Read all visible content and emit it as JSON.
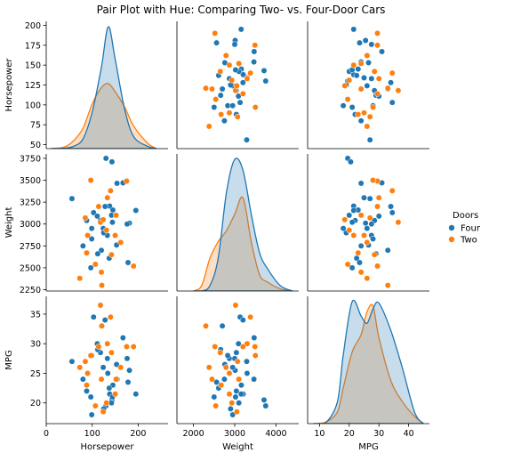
{
  "chart_data": {
    "type": "scatter",
    "title": "Pair Plot with Hue: Comparing Two- vs. Four-Door Cars",
    "variables": [
      "Horsepower",
      "Weight",
      "MPG"
    ],
    "diagonal": "kde",
    "offdiagonal": "scatter",
    "grid": false,
    "legend": {
      "title": "Doors",
      "position": "right",
      "entries": [
        "Four",
        "Two"
      ]
    },
    "colors": {
      "Four": "#1f77b4",
      "Two": "#ff7f0e"
    },
    "axes": {
      "Horsepower": {
        "lim": [
          0,
          265
        ],
        "ticks": [
          50,
          75,
          100,
          125,
          150,
          175,
          200
        ],
        "bottom_ticks": [
          0,
          100,
          200
        ],
        "lim_row": [
          45,
          205
        ]
      },
      "Weight": {
        "lim": [
          1600,
          4550
        ],
        "ticks": [
          2250,
          2500,
          2750,
          3000,
          3250,
          3500,
          3750
        ],
        "bottom_ticks": [
          2000,
          3000,
          4000
        ],
        "lim_row": [
          2235,
          3800
        ]
      },
      "MPG": {
        "lim": [
          6,
          47
        ],
        "ticks": [
          20,
          25,
          30,
          35
        ],
        "bottom_ticks": [
          10,
          20,
          30,
          40
        ],
        "lim_row": [
          16.5,
          38
        ]
      }
    },
    "series": [
      {
        "name": "Four",
        "points": [
          {
            "Horsepower": 130,
            "Weight": 3750,
            "MPG": 19.5
          },
          {
            "Horsepower": 143,
            "Weight": 3710,
            "MPG": 20.5
          },
          {
            "Horsepower": 154,
            "Weight": 3465,
            "MPG": 24.0
          },
          {
            "Horsepower": 167,
            "Weight": 3470,
            "MPG": 31.0
          },
          {
            "Horsepower": 138,
            "Weight": 3205,
            "MPG": 21.5
          },
          {
            "Horsepower": 145,
            "Weight": 3160,
            "MPG": 23.0
          },
          {
            "Horsepower": 56,
            "Weight": 3290,
            "MPG": 27.0
          },
          {
            "Horsepower": 103,
            "Weight": 3130,
            "MPG": 34.5
          },
          {
            "Horsepower": 195,
            "Weight": 3155,
            "MPG": 21.5
          },
          {
            "Horsepower": 118,
            "Weight": 3040,
            "MPG": 28.5
          },
          {
            "Horsepower": 181,
            "Weight": 3010,
            "MPG": 25.5
          },
          {
            "Horsepower": 124,
            "Weight": 2950,
            "MPG": 26.0
          },
          {
            "Horsepower": 133,
            "Weight": 2870,
            "MPG": 27.5
          },
          {
            "Horsepower": 99,
            "Weight": 2830,
            "MPG": 28.0
          },
          {
            "Horsepower": 153,
            "Weight": 2760,
            "MPG": 26.5
          },
          {
            "Horsepower": 120,
            "Weight": 2700,
            "MPG": 33.0
          },
          {
            "Horsepower": 112,
            "Weight": 2660,
            "MPG": 29.0
          },
          {
            "Horsepower": 137,
            "Weight": 2610,
            "MPG": 22.5
          },
          {
            "Horsepower": 178,
            "Weight": 2560,
            "MPG": 23.5
          },
          {
            "Horsepower": 97,
            "Weight": 2500,
            "MPG": 21.0
          },
          {
            "Horsepower": 88,
            "Weight": 3040,
            "MPG": 22.0
          },
          {
            "Horsepower": 134,
            "Weight": 3300,
            "MPG": 25.0
          },
          {
            "Horsepower": 111,
            "Weight": 3090,
            "MPG": 30.0
          },
          {
            "Horsepower": 125,
            "Weight": 2900,
            "MPG": 19.0
          },
          {
            "Horsepower": 142,
            "Weight": 3100,
            "MPG": 20.0
          },
          {
            "Horsepower": 128,
            "Weight": 3200,
            "MPG": 34.0
          },
          {
            "Horsepower": 176,
            "Weight": 3000,
            "MPG": 27.5
          },
          {
            "Horsepower": 99,
            "Weight": 2950,
            "MPG": 18.0
          },
          {
            "Horsepower": 80,
            "Weight": 2750,
            "MPG": 24.0
          },
          {
            "Horsepower": 144,
            "Weight": 3020,
            "MPG": 21.0
          }
        ]
      },
      {
        "name": "Two",
        "points": [
          {
            "Horsepower": 175,
            "Weight": 3490,
            "MPG": 29.5
          },
          {
            "Horsepower": 140,
            "Weight": 3380,
            "MPG": 34.5
          },
          {
            "Horsepower": 118,
            "Weight": 3020,
            "MPG": 36.5
          },
          {
            "Horsepower": 97,
            "Weight": 3500,
            "MPG": 28.0
          },
          {
            "Horsepower": 152,
            "Weight": 3100,
            "MPG": 24.0
          },
          {
            "Horsepower": 133,
            "Weight": 3300,
            "MPG": 30.0
          },
          {
            "Horsepower": 73,
            "Weight": 2380,
            "MPG": 26.0
          },
          {
            "Horsepower": 90,
            "Weight": 2870,
            "MPG": 25.0
          },
          {
            "Horsepower": 107,
            "Weight": 2540,
            "MPG": 19.5
          },
          {
            "Horsepower": 190,
            "Weight": 2520,
            "MPG": 29.5
          },
          {
            "Horsepower": 120,
            "Weight": 2450,
            "MPG": 24.0
          },
          {
            "Horsepower": 150,
            "Weight": 2870,
            "MPG": 21.5
          },
          {
            "Horsepower": 131,
            "Weight": 2930,
            "MPG": 20.0
          },
          {
            "Horsepower": 85,
            "Weight": 3070,
            "MPG": 27.0
          },
          {
            "Horsepower": 142,
            "Weight": 2650,
            "MPG": 28.5
          },
          {
            "Horsepower": 88,
            "Weight": 2670,
            "MPG": 23.0
          },
          {
            "Horsepower": 121,
            "Weight": 2300,
            "MPG": 33.0
          },
          {
            "Horsepower": 114,
            "Weight": 3200,
            "MPG": 29.5
          },
          {
            "Horsepower": 162,
            "Weight": 2790,
            "MPG": 26.0
          },
          {
            "Horsepower": 124,
            "Weight": 3050,
            "MPG": 18.5
          }
        ]
      }
    ],
    "kde": {
      "Horsepower": {
        "x": [
          10,
          40,
          60,
          80,
          100,
          120,
          135,
          150,
          170,
          190,
          220,
          240
        ],
        "Four": [
          0,
          0.5,
          3,
          12,
          45,
          100,
          150,
          110,
          50,
          15,
          3,
          0
        ],
        "Two": [
          0,
          2,
          10,
          25,
          55,
          75,
          80,
          70,
          52,
          28,
          7,
          0
        ]
      },
      "Weight": {
        "x": [
          2000,
          2200,
          2400,
          2600,
          2800,
          3000,
          3200,
          3400,
          3600,
          3800,
          4100,
          4400
        ],
        "Four": [
          0,
          0,
          5,
          30,
          90,
          120,
          110,
          70,
          35,
          20,
          5,
          0
        ],
        "Two": [
          0,
          5,
          30,
          45,
          55,
          70,
          85,
          45,
          15,
          8,
          2,
          0
        ]
      },
      "MPG": {
        "x": [
          8,
          12,
          16,
          18,
          21,
          24,
          26,
          28,
          30,
          34,
          38,
          42,
          45
        ],
        "Four": [
          0,
          0.5,
          15,
          48,
          85,
          75,
          70,
          80,
          84,
          65,
          38,
          8,
          0
        ],
        "Two": [
          0,
          1,
          8,
          25,
          50,
          62,
          78,
          82,
          60,
          30,
          15,
          5,
          0
        ]
      }
    }
  }
}
